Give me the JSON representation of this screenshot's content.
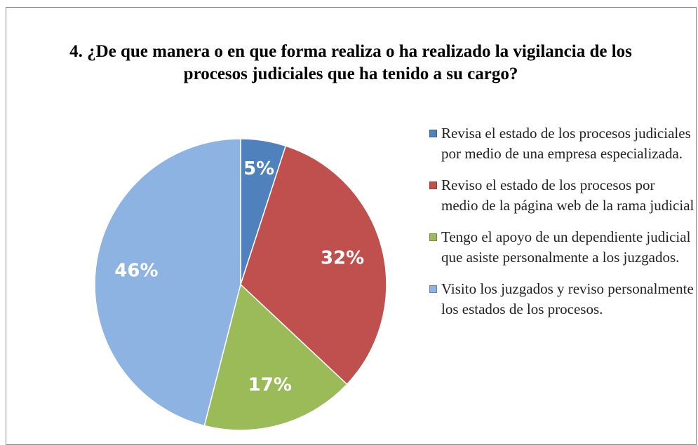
{
  "chart_data": {
    "type": "pie",
    "title": "4. ¿De que manera o en que forma realiza o ha realizado la vigilancia de los procesos judiciales que ha tenido a su cargo?",
    "categories": [
      "Revisa el estado de los procesos judiciales por medio de una empresa especializada.",
      "Reviso el estado de los procesos por medio de la página web de la rama judicial",
      "Tengo el apoyo de un dependiente judicial que asiste personalmente a los juzgados.",
      "Visito los juzgados y reviso personalmente los estados de los procesos."
    ],
    "values": [
      5,
      32,
      17,
      46
    ],
    "value_labels": [
      "5%",
      "32%",
      "17%",
      "46%"
    ],
    "colors": [
      "#4f81bd",
      "#c0504d",
      "#9bbb59",
      "#8db3e2"
    ],
    "legend": "right"
  }
}
